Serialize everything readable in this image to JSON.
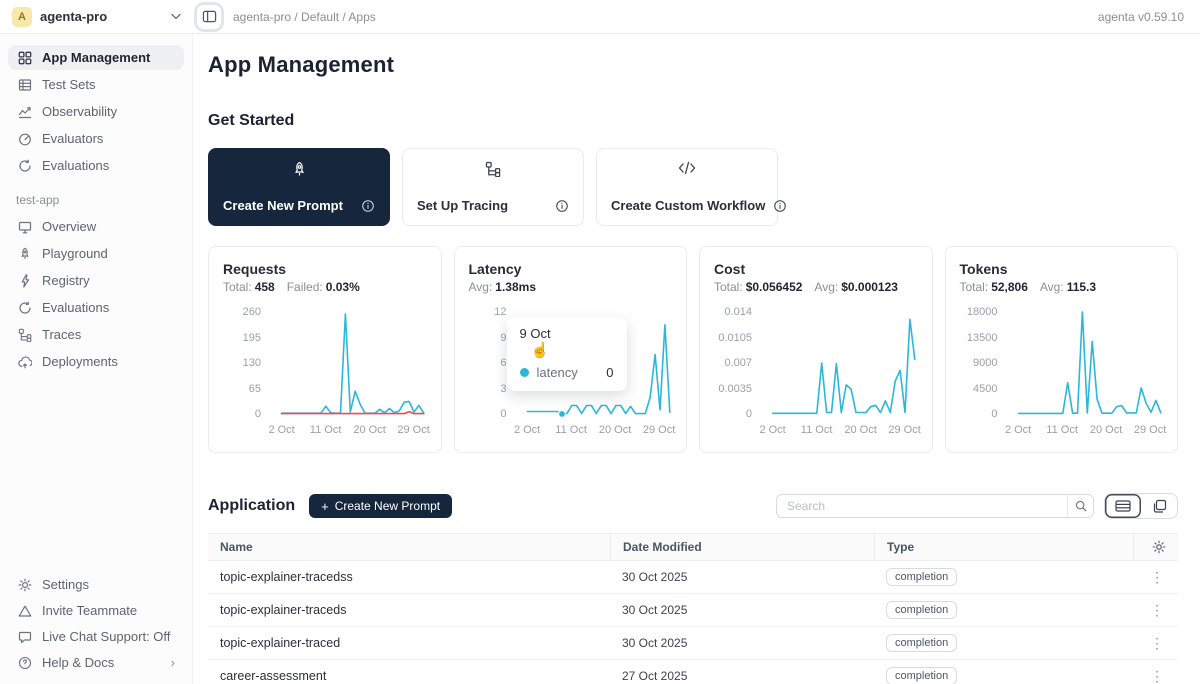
{
  "topbar": {
    "avatar": "A",
    "workspace": "agenta-pro",
    "breadcrumb": "agenta-pro / Default / Apps",
    "version": "agenta v0.59.10"
  },
  "sidebar": {
    "main": [
      {
        "label": "App Management",
        "icon": "grid-icon"
      },
      {
        "label": "Test Sets",
        "icon": "table-icon"
      },
      {
        "label": "Observability",
        "icon": "chart-line-icon"
      },
      {
        "label": "Evaluators",
        "icon": "gauge-icon"
      },
      {
        "label": "Evaluations",
        "icon": "refresh-icon"
      }
    ],
    "app_section": {
      "label": "test-app",
      "items": [
        {
          "label": "Overview",
          "icon": "monitor-icon"
        },
        {
          "label": "Playground",
          "icon": "rocket-icon"
        },
        {
          "label": "Registry",
          "icon": "lightning-icon"
        },
        {
          "label": "Evaluations",
          "icon": "refresh-icon"
        },
        {
          "label": "Traces",
          "icon": "tree-icon"
        },
        {
          "label": "Deployments",
          "icon": "cloud-icon"
        }
      ]
    },
    "footer": [
      {
        "label": "Settings",
        "icon": "gear-icon"
      },
      {
        "label": "Invite Teammate",
        "icon": "triangle-icon"
      },
      {
        "label": "Live Chat Support: Off",
        "icon": "chat-icon"
      },
      {
        "label": "Help & Docs",
        "icon": "help-icon",
        "chevron": "›"
      }
    ]
  },
  "main": {
    "title": "App Management",
    "get_started": {
      "title": "Get Started",
      "cards": [
        {
          "label": "Create New Prompt",
          "icon": "rocket-icon",
          "dark": true
        },
        {
          "label": "Set Up Tracing",
          "icon": "tree-icon",
          "dark": false
        },
        {
          "label": "Create Custom Workflow",
          "icon": "code-icon",
          "dark": false
        }
      ]
    },
    "application": {
      "title": "Application",
      "create_button": "Create New Prompt",
      "search_placeholder": "Search",
      "table": {
        "headers": [
          "Name",
          "Date Modified",
          "Type"
        ],
        "rows": [
          {
            "name": "topic-explainer-tracedss",
            "date": "30 Oct 2025",
            "type": "completion"
          },
          {
            "name": "topic-explainer-traceds",
            "date": "30 Oct 2025",
            "type": "completion"
          },
          {
            "name": "topic-explainer-traced",
            "date": "30 Oct 2025",
            "type": "completion"
          },
          {
            "name": "career-assessment",
            "date": "27 Oct 2025",
            "type": "completion"
          }
        ]
      }
    }
  },
  "icons": {
    "kebab": "⋮",
    "chevron-right": "›",
    "pointer-hand": "☝",
    "plus": "+",
    "code": "</>"
  },
  "colors": {
    "accent": "#2bb7d9",
    "danger": "#f5484d",
    "dark": "#16263c"
  },
  "chart_data": [
    {
      "type": "line",
      "title": "Requests",
      "stats": [
        {
          "label": "Total:",
          "value": "458"
        },
        {
          "label": "Failed:",
          "value": "0.03%"
        }
      ],
      "ymax": 260,
      "yticks": [
        "260",
        "195",
        "130",
        "65",
        "0"
      ],
      "x_domain": [
        2,
        31
      ],
      "xticks": [
        {
          "label": "2 Oct",
          "day": 2
        },
        {
          "label": "11 Oct",
          "day": 11
        },
        {
          "label": "20 Oct",
          "day": 20
        },
        {
          "label": "29 Oct",
          "day": 29
        }
      ],
      "series": [
        {
          "name": "total",
          "color": "#2bb7d9",
          "values": [
            2,
            2,
            2,
            2,
            2,
            2,
            2,
            2,
            2,
            20,
            3,
            2,
            2,
            255,
            5,
            58,
            25,
            2,
            2,
            2,
            12,
            3,
            14,
            3,
            8,
            30,
            32,
            5,
            22,
            2
          ]
        },
        {
          "name": "failed",
          "color": "#f5484d",
          "values": [
            1,
            1,
            1,
            1,
            1,
            1,
            1,
            1,
            1,
            1,
            1,
            1,
            1,
            1,
            1,
            1,
            1,
            1,
            1,
            1,
            1,
            1,
            1,
            1,
            1,
            1,
            6,
            1,
            1,
            1
          ]
        }
      ]
    },
    {
      "type": "line",
      "title": "Latency",
      "stats": [
        {
          "label": "Avg:",
          "value": "1.38ms"
        }
      ],
      "ymax": 12,
      "yticks": [
        "12",
        "9",
        "6",
        "3",
        "0"
      ],
      "x_domain": [
        2,
        31
      ],
      "xticks": [
        {
          "label": "2 Oct",
          "day": 2
        },
        {
          "label": "11 Oct",
          "day": 11
        },
        {
          "label": "20 Oct",
          "day": 20
        },
        {
          "label": "29 Oct",
          "day": 29
        }
      ],
      "series": [
        {
          "name": "latency",
          "color": "#2bb7d9",
          "values": [
            0.3,
            0.3,
            0.3,
            0.3,
            0.3,
            0.3,
            0.3,
            0.05,
            0.05,
            1,
            1,
            0.05,
            1,
            1,
            0.05,
            1,
            1,
            0.05,
            1,
            1,
            0.05,
            0.9,
            0.05,
            0.05,
            0.05,
            2,
            7,
            0.5,
            10.5,
            0.2
          ]
        }
      ],
      "marker": {
        "day": 9,
        "value": 0
      },
      "tooltip": {
        "date": "9 Oct",
        "series": "latency",
        "value": "0"
      }
    },
    {
      "type": "line",
      "title": "Cost",
      "stats": [
        {
          "label": "Total:",
          "value": "$0.056452"
        },
        {
          "label": "Avg:",
          "value": "$0.000123"
        }
      ],
      "ymax": 0.014,
      "yticks": [
        "0.014",
        "0.0105",
        "0.007",
        "0.0035",
        "0"
      ],
      "x_domain": [
        2,
        31
      ],
      "xticks": [
        {
          "label": "2 Oct",
          "day": 2
        },
        {
          "label": "11 Oct",
          "day": 11
        },
        {
          "label": "20 Oct",
          "day": 20
        },
        {
          "label": "29 Oct",
          "day": 29
        }
      ],
      "series": [
        {
          "name": "cost",
          "color": "#2bb7d9",
          "values": [
            0.0001,
            0.0001,
            0.0001,
            0.0001,
            0.0001,
            0.0001,
            0.0001,
            0.0001,
            0.0001,
            0.0001,
            0.007,
            0.0002,
            0.0002,
            0.0069,
            0.0002,
            0.004,
            0.0034,
            0.0002,
            0.0002,
            0.0002,
            0.001,
            0.0012,
            0.0002,
            0.0018,
            0.0002,
            0.0045,
            0.006,
            0.0002,
            0.013,
            0.0075
          ]
        }
      ]
    },
    {
      "type": "line",
      "title": "Tokens",
      "stats": [
        {
          "label": "Total:",
          "value": "52,806"
        },
        {
          "label": "Avg:",
          "value": "115.3"
        }
      ],
      "ymax": 18000,
      "yticks": [
        "18000",
        "13500",
        "9000",
        "4500",
        "0"
      ],
      "x_domain": [
        2,
        31
      ],
      "xticks": [
        {
          "label": "2 Oct",
          "day": 2
        },
        {
          "label": "11 Oct",
          "day": 11
        },
        {
          "label": "20 Oct",
          "day": 20
        },
        {
          "label": "29 Oct",
          "day": 29
        }
      ],
      "series": [
        {
          "name": "tokens",
          "color": "#2bb7d9",
          "values": [
            100,
            100,
            100,
            100,
            100,
            100,
            100,
            100,
            100,
            100,
            5500,
            150,
            150,
            18000,
            200,
            12800,
            2600,
            150,
            150,
            150,
            1300,
            1500,
            200,
            200,
            200,
            4600,
            1900,
            300,
            2400,
            200
          ]
        }
      ]
    }
  ]
}
